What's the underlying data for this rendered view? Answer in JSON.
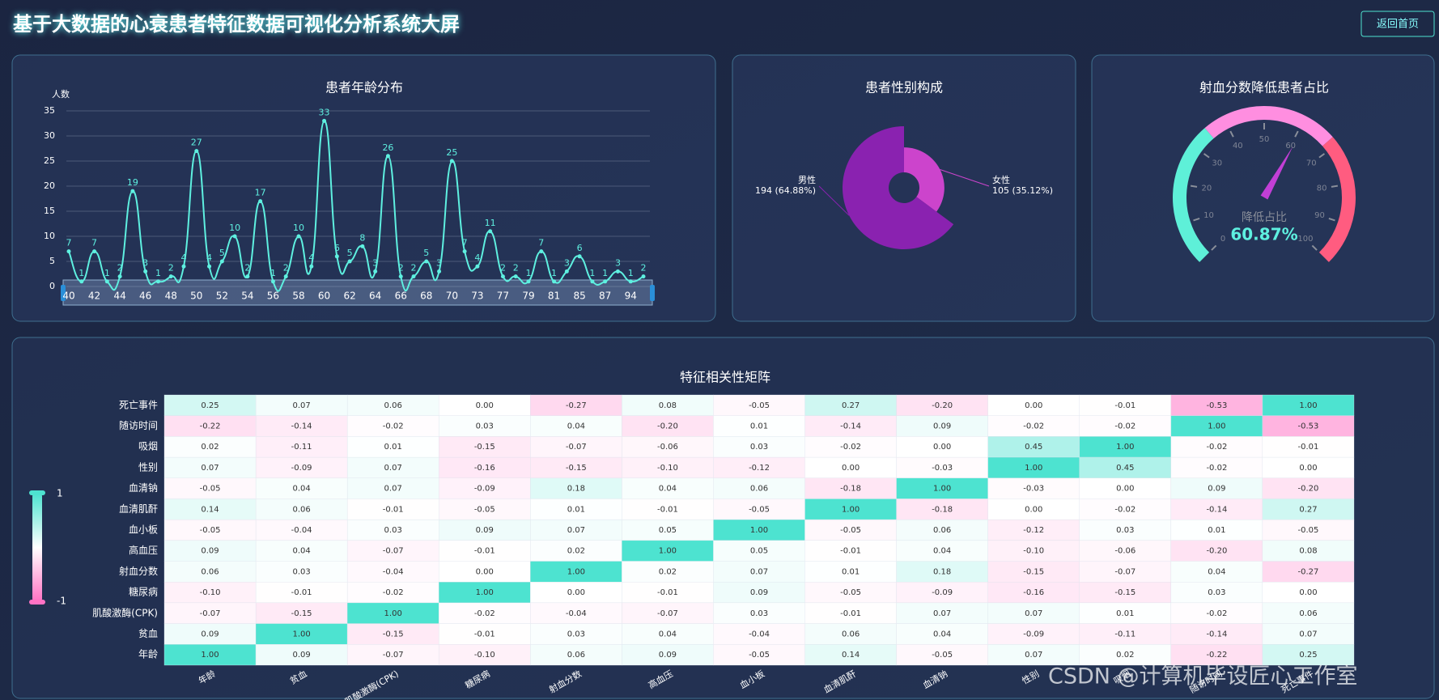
{
  "header": {
    "title": "基于大数据的心衰患者特征数据可视化分析系统大屏",
    "button": "返回首页"
  },
  "watermark": "CSDN @计算机毕设匠心工作室",
  "chart_data": [
    {
      "type": "line",
      "title": "患者年龄分布",
      "y_label": "人数",
      "color": "#5ef0e0",
      "categories": [
        "40",
        null,
        "42",
        null,
        "44",
        null,
        "46",
        null,
        "48",
        null,
        "50",
        null,
        "52",
        null,
        "54",
        null,
        "56",
        null,
        "58",
        null,
        "60",
        null,
        "62",
        null,
        "64",
        null,
        "66",
        null,
        "68",
        null,
        "70",
        null,
        "73",
        null,
        "77",
        null,
        "79",
        null,
        "81",
        null,
        "85",
        null,
        "87",
        null,
        "94",
        null
      ],
      "values": [
        7,
        1,
        7,
        1,
        2,
        19,
        3,
        1,
        2,
        4,
        27,
        4,
        5,
        10,
        2,
        17,
        1,
        2,
        10,
        4,
        33,
        6,
        5,
        8,
        3,
        26,
        2,
        2,
        5,
        3,
        25,
        7,
        4,
        11,
        2,
        2,
        1,
        7,
        1,
        3,
        6,
        1,
        1,
        3,
        1,
        2
      ],
      "ylim": [
        0,
        35
      ],
      "yticks": [
        0,
        5,
        10,
        15,
        20,
        25,
        30,
        35
      ],
      "grid": true
    },
    {
      "type": "pie",
      "title": "患者性别构成",
      "rose": true,
      "categories": [
        "女性",
        "男性"
      ],
      "values": [
        105,
        194
      ],
      "value_labels": [
        "105 (35.12%)",
        "194 (64.88%)"
      ],
      "colors": [
        "#cc44cc",
        "#8a22b0"
      ]
    },
    {
      "type": "gauge",
      "title": "射血分数降低患者占比",
      "name": "降低占比",
      "value": 60.87,
      "value_label": "60.87%",
      "min": 0,
      "max": 100,
      "ticks": [
        0,
        10,
        20,
        30,
        40,
        50,
        60,
        70,
        80,
        90,
        100
      ],
      "bands": [
        {
          "to": 35,
          "color": "#5ef0d8"
        },
        {
          "to": 68,
          "color": "#ff8ee0"
        },
        {
          "to": 100,
          "color": "#ff5c80"
        }
      ],
      "pointer_color": "#c23fd6"
    },
    {
      "type": "heatmap",
      "title": "特征相关性矩阵",
      "x_categories": [
        "年龄",
        "贫血",
        "肌酸激酶(CPK)",
        "糖尿病",
        "射血分数",
        "高血压",
        "血小板",
        "血清肌酐",
        "血清钠",
        "性别",
        "吸烟",
        "随访时间",
        "死亡事件"
      ],
      "y_categories": [
        "死亡事件",
        "随访时间",
        "吸烟",
        "性别",
        "血清钠",
        "血清肌酐",
        "血小板",
        "高血压",
        "射血分数",
        "糖尿病",
        "肌酸激酶(CPK)",
        "贫血",
        "年龄"
      ],
      "values": [
        [
          0.25,
          0.07,
          0.06,
          0,
          -0.27,
          0.08,
          -0.05,
          0.27,
          -0.2,
          0,
          -0.01,
          -0.53,
          1
        ],
        [
          -0.22,
          -0.14,
          -0.02,
          0.03,
          0.04,
          -0.2,
          0.01,
          -0.14,
          0.09,
          -0.02,
          -0.02,
          1,
          -0.53
        ],
        [
          0.02,
          -0.11,
          0.01,
          -0.15,
          -0.07,
          -0.06,
          0.03,
          -0.02,
          0,
          0.45,
          1,
          -0.02,
          -0.01
        ],
        [
          0.07,
          -0.09,
          0.07,
          -0.16,
          -0.15,
          -0.1,
          -0.12,
          0,
          -0.03,
          1,
          0.45,
          -0.02,
          0
        ],
        [
          -0.05,
          0.04,
          0.07,
          -0.09,
          0.18,
          0.04,
          0.06,
          -0.18,
          1,
          -0.03,
          0,
          0.09,
          -0.2
        ],
        [
          0.14,
          0.06,
          -0.01,
          -0.05,
          0.01,
          -0.01,
          -0.05,
          1,
          -0.18,
          0,
          -0.02,
          -0.14,
          0.27
        ],
        [
          -0.05,
          -0.04,
          0.03,
          0.09,
          0.07,
          0.05,
          1,
          -0.05,
          0.06,
          -0.12,
          0.03,
          0.01,
          -0.05
        ],
        [
          0.09,
          0.04,
          -0.07,
          -0.01,
          0.02,
          1,
          0.05,
          -0.01,
          0.04,
          -0.1,
          -0.06,
          -0.2,
          0.08
        ],
        [
          0.06,
          0.03,
          -0.04,
          0,
          1,
          0.02,
          0.07,
          0.01,
          0.18,
          -0.15,
          -0.07,
          0.04,
          -0.27
        ],
        [
          -0.1,
          -0.01,
          -0.02,
          1,
          0,
          -0.01,
          0.09,
          -0.05,
          -0.09,
          -0.16,
          -0.15,
          0.03,
          0
        ],
        [
          -0.07,
          -0.15,
          1,
          -0.02,
          -0.04,
          -0.07,
          0.03,
          -0.01,
          0.07,
          0.07,
          0.01,
          -0.02,
          0.06
        ],
        [
          0.09,
          1,
          -0.15,
          -0.01,
          0.03,
          0.04,
          -0.04,
          0.06,
          0.04,
          -0.09,
          -0.11,
          -0.14,
          0.07
        ],
        [
          1,
          0.09,
          -0.07,
          -0.1,
          0.06,
          0.09,
          -0.05,
          0.14,
          -0.05,
          0.07,
          0.02,
          -0.22,
          0.25
        ]
      ],
      "value_labels": [
        [
          "0.25",
          "0.07",
          "0.06",
          "0.00",
          "-0.27",
          "0.08",
          "-0.05",
          "0.27",
          "-0.20",
          "0.00",
          "-0.01",
          "-0.53",
          "1.00"
        ],
        [
          "-0.22",
          "-0.14",
          "-0.02",
          "0.03",
          "0.04",
          "-0.20",
          "0.01",
          "-0.14",
          "0.09",
          "-0.02",
          "-0.02",
          "1.00",
          "-0.53"
        ],
        [
          "0.02",
          "-0.11",
          "0.01",
          "-0.15",
          "-0.07",
          "-0.06",
          "0.03",
          "-0.02",
          "0.00",
          "0.45",
          "1.00",
          "-0.02",
          "-0.01"
        ],
        [
          "0.07",
          "-0.09",
          "0.07",
          "-0.16",
          "-0.15",
          "-0.10",
          "-0.12",
          "0.00",
          "-0.03",
          "1.00",
          "0.45",
          "-0.02",
          "0.00"
        ],
        [
          "-0.05",
          "0.04",
          "0.07",
          "-0.09",
          "0.18",
          "0.04",
          "0.06",
          "-0.18",
          "1.00",
          "-0.03",
          "0.00",
          "0.09",
          "-0.20"
        ],
        [
          "0.14",
          "0.06",
          "-0.01",
          "-0.05",
          "0.01",
          "-0.01",
          "-0.05",
          "1.00",
          "-0.18",
          "0.00",
          "-0.02",
          "-0.14",
          "0.27"
        ],
        [
          "-0.05",
          "-0.04",
          "0.03",
          "0.09",
          "0.07",
          "0.05",
          "1.00",
          "-0.05",
          "0.06",
          "-0.12",
          "0.03",
          "0.01",
          "-0.05"
        ],
        [
          "0.09",
          "0.04",
          "-0.07",
          "-0.01",
          "0.02",
          "1.00",
          "0.05",
          "-0.01",
          "0.04",
          "-0.10",
          "-0.06",
          "-0.20",
          "0.08"
        ],
        [
          "0.06",
          "0.03",
          "-0.04",
          "0.00",
          "1.00",
          "0.02",
          "0.07",
          "0.01",
          "0.18",
          "-0.15",
          "-0.07",
          "0.04",
          "-0.27"
        ],
        [
          "-0.10",
          "-0.01",
          "-0.02",
          "1.00",
          "0.00",
          "-0.01",
          "0.09",
          "-0.05",
          "-0.09",
          "-0.16",
          "-0.15",
          "0.03",
          "0.00"
        ],
        [
          "-0.07",
          "-0.15",
          "1.00",
          "-0.02",
          "-0.04",
          "-0.07",
          "0.03",
          "-0.01",
          "0.07",
          "0.07",
          "0.01",
          "-0.02",
          "0.06"
        ],
        [
          "0.09",
          "1.00",
          "-0.15",
          "-0.01",
          "0.03",
          "0.04",
          "-0.04",
          "0.06",
          "0.04",
          "-0.09",
          "-0.11",
          "-0.14",
          "0.07"
        ],
        [
          "1.00",
          "0.09",
          "-0.07",
          "-0.10",
          "0.06",
          "0.09",
          "-0.05",
          "0.14",
          "-0.05",
          "0.07",
          "0.02",
          "-0.22",
          "0.25"
        ]
      ],
      "visual_map": {
        "min": -1,
        "max": 1,
        "colors": [
          "#ff72c4",
          "#ffffff",
          "#4de3d0"
        ]
      }
    }
  ]
}
